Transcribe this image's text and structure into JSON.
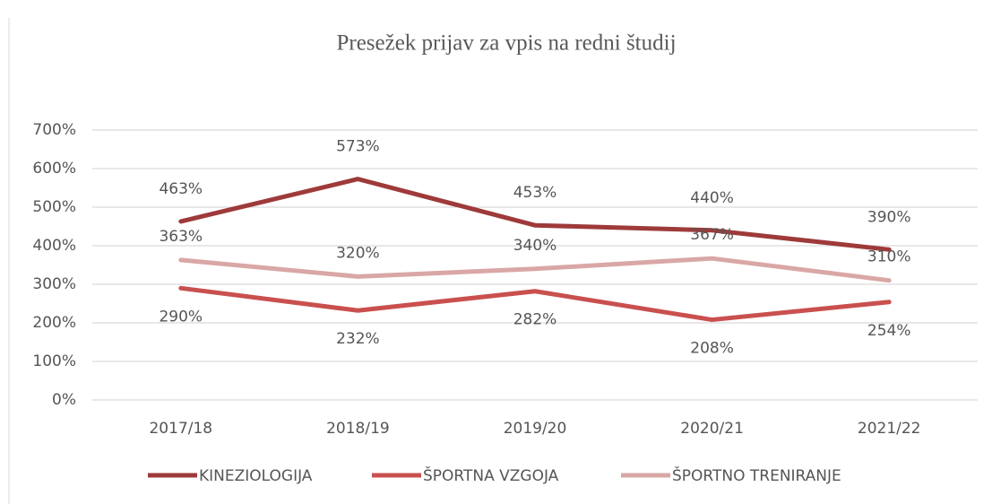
{
  "chart_data": {
    "type": "line",
    "title": "Presežek prijav  za vpis na redni študij",
    "categories": [
      "2017/18",
      "2018/19",
      "2019/20",
      "2020/21",
      "2021/22"
    ],
    "series": [
      {
        "name": "KINEZIOLOGIJA",
        "color": "#9e3a3a",
        "values": [
          463,
          573,
          453,
          440,
          390
        ],
        "value_labels": [
          "463%",
          "573%",
          "453%",
          "440%",
          "390%"
        ]
      },
      {
        "name": "ŠPORTNA VZGOJA",
        "color": "#c9504e",
        "values": [
          290,
          232,
          282,
          208,
          254
        ],
        "value_labels": [
          "290%",
          "232%",
          "282%",
          "208%",
          "254%"
        ]
      },
      {
        "name": "ŠPORTNO TRENIRANJE",
        "color": "#d9a7a5",
        "values": [
          363,
          320,
          340,
          367,
          310
        ],
        "value_labels": [
          "363%",
          "320%",
          "340%",
          "367%",
          "310%"
        ]
      }
    ],
    "ylim": [
      0,
      700
    ],
    "yticks": [
      {
        "value": 0,
        "label": "0%"
      },
      {
        "value": 100,
        "label": "100%"
      },
      {
        "value": 200,
        "label": "200%"
      },
      {
        "value": 300,
        "label": "300%"
      },
      {
        "value": 400,
        "label": "400%"
      },
      {
        "value": 500,
        "label": "500%"
      },
      {
        "value": 600,
        "label": "600%"
      },
      {
        "value": 700,
        "label": "700%"
      }
    ],
    "grid": true,
    "legend": "bottom"
  }
}
